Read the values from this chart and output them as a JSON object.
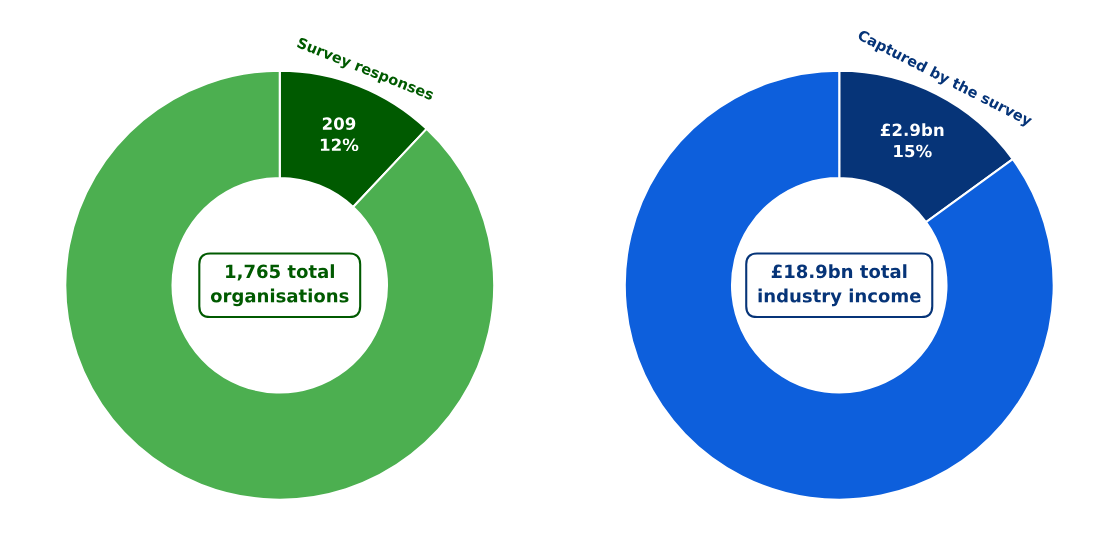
{
  "chart_data": [
    {
      "type": "donut",
      "categories": [
        "Survey responses",
        null
      ],
      "values": [
        12,
        88
      ],
      "colors": [
        "#005a00",
        "#4caf50"
      ],
      "value_labels": [
        "209\n12%",
        null
      ],
      "annotations": [
        "1,765 total\norganisations"
      ],
      "legend": false
    },
    {
      "type": "donut",
      "categories": [
        "Captured by the survey",
        null
      ],
      "values": [
        15,
        85
      ],
      "colors": [
        "#063478",
        "#0d5fdc"
      ],
      "value_labels": [
        "£2.9bn\n15%",
        null
      ],
      "annotations": [
        "£18.9bn total\nindustry income"
      ],
      "legend": false
    }
  ]
}
